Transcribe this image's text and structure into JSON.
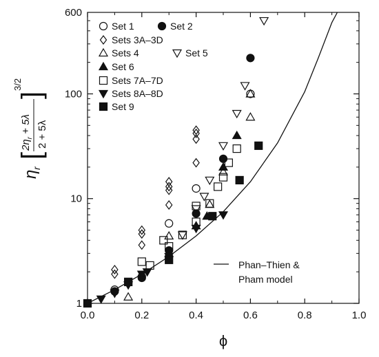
{
  "chart_data": {
    "type": "scatter",
    "xlabel": "ϕ",
    "ylabel": {
      "eta": "η",
      "sub": "r",
      "numerator": "2η",
      "numerator_sub": "r",
      "numerator_rest": " + 5λ",
      "denominator": "2 + 5λ",
      "exponent": "3/2"
    },
    "xlim": [
      0,
      1
    ],
    "ylim": [
      1,
      600
    ],
    "yscale": "log",
    "xticks": [
      "0.0",
      "0.2",
      "0.4",
      "0.6",
      "0.8",
      "1.0"
    ],
    "yticks": [
      {
        "value": 1,
        "label": "1"
      },
      {
        "value": 10,
        "label": "10"
      },
      {
        "value": 100,
        "label": "100"
      },
      {
        "value": 600,
        "label": "600"
      }
    ],
    "legend_position": "top-left",
    "series": [
      {
        "name": "Set 1",
        "marker": "circle-open",
        "points": [
          [
            0.1,
            1.35
          ],
          [
            0.2,
            1.8
          ],
          [
            0.3,
            5.8
          ],
          [
            0.4,
            12.5
          ],
          [
            0.6,
            100
          ]
        ]
      },
      {
        "name": "Set 2",
        "marker": "circle-filled",
        "points": [
          [
            0.1,
            1.3
          ],
          [
            0.2,
            1.75
          ],
          [
            0.3,
            3.2
          ],
          [
            0.4,
            7.2
          ],
          [
            0.5,
            24
          ],
          [
            0.6,
            220
          ]
        ]
      },
      {
        "name": "Sets 3A–3D",
        "marker": "diamond-open",
        "points": [
          [
            0.1,
            1.9
          ],
          [
            0.1,
            2.1
          ],
          [
            0.2,
            3.6
          ],
          [
            0.2,
            4.6
          ],
          [
            0.2,
            5.0
          ],
          [
            0.3,
            8.7
          ],
          [
            0.3,
            12
          ],
          [
            0.3,
            13
          ],
          [
            0.3,
            14.5
          ],
          [
            0.4,
            22
          ],
          [
            0.4,
            37
          ],
          [
            0.4,
            42
          ],
          [
            0.4,
            45
          ]
        ]
      },
      {
        "name": "Sets 4",
        "marker": "triangle-up-open",
        "points": [
          [
            0.15,
            1.15
          ],
          [
            0.3,
            4.4
          ],
          [
            0.45,
            8.8
          ],
          [
            0.5,
            18
          ],
          [
            0.6,
            60
          ],
          [
            0.6,
            100
          ]
        ]
      },
      {
        "name": "Set 5",
        "marker": "triangle-down-open",
        "points": [
          [
            0.35,
            4.5
          ],
          [
            0.4,
            8.0
          ],
          [
            0.43,
            10.5
          ],
          [
            0.45,
            15
          ],
          [
            0.5,
            32
          ],
          [
            0.55,
            65
          ],
          [
            0.58,
            120
          ],
          [
            0.65,
            500
          ]
        ]
      },
      {
        "name": "Set 6",
        "marker": "triangle-up-filled",
        "points": [
          [
            0.3,
            3.0
          ],
          [
            0.4,
            5.5
          ],
          [
            0.44,
            6.8
          ],
          [
            0.5,
            20
          ],
          [
            0.55,
            40
          ]
        ]
      },
      {
        "name": "Sets 7A–7D",
        "marker": "square-open",
        "points": [
          [
            0.15,
            1.6
          ],
          [
            0.2,
            2.5
          ],
          [
            0.23,
            2.3
          ],
          [
            0.28,
            4.0
          ],
          [
            0.3,
            3.5
          ],
          [
            0.35,
            4.5
          ],
          [
            0.4,
            6.0
          ],
          [
            0.4,
            8.5
          ],
          [
            0.45,
            9.0
          ],
          [
            0.48,
            13
          ],
          [
            0.5,
            16
          ],
          [
            0.52,
            22
          ],
          [
            0.55,
            30
          ]
        ]
      },
      {
        "name": "Sets 8A–8D",
        "marker": "triangle-down-filled",
        "points": [
          [
            0.05,
            1.1
          ],
          [
            0.1,
            1.25
          ],
          [
            0.15,
            1.5
          ],
          [
            0.2,
            1.9
          ],
          [
            0.22,
            2.0
          ],
          [
            0.3,
            2.8
          ],
          [
            0.4,
            5.2
          ],
          [
            0.5,
            7.0
          ]
        ]
      },
      {
        "name": "Set 9",
        "marker": "square-filled",
        "points": [
          [
            0.0,
            1.0
          ],
          [
            0.15,
            1.6
          ],
          [
            0.3,
            2.6
          ],
          [
            0.46,
            6.8
          ],
          [
            0.56,
            15
          ],
          [
            0.63,
            32
          ]
        ]
      }
    ],
    "model": {
      "name": "Phan-Thien & Pham model",
      "name_lines": [
        "Phan–Thien &",
        "Pham model"
      ],
      "points": [
        [
          0,
          1
        ],
        [
          0.1,
          1.35
        ],
        [
          0.2,
          1.9
        ],
        [
          0.3,
          2.8
        ],
        [
          0.4,
          4.4
        ],
        [
          0.5,
          7.5
        ],
        [
          0.6,
          14.5
        ],
        [
          0.7,
          34
        ],
        [
          0.8,
          105
        ],
        [
          0.85,
          220
        ],
        [
          0.9,
          480
        ],
        [
          0.92,
          600
        ]
      ]
    }
  }
}
